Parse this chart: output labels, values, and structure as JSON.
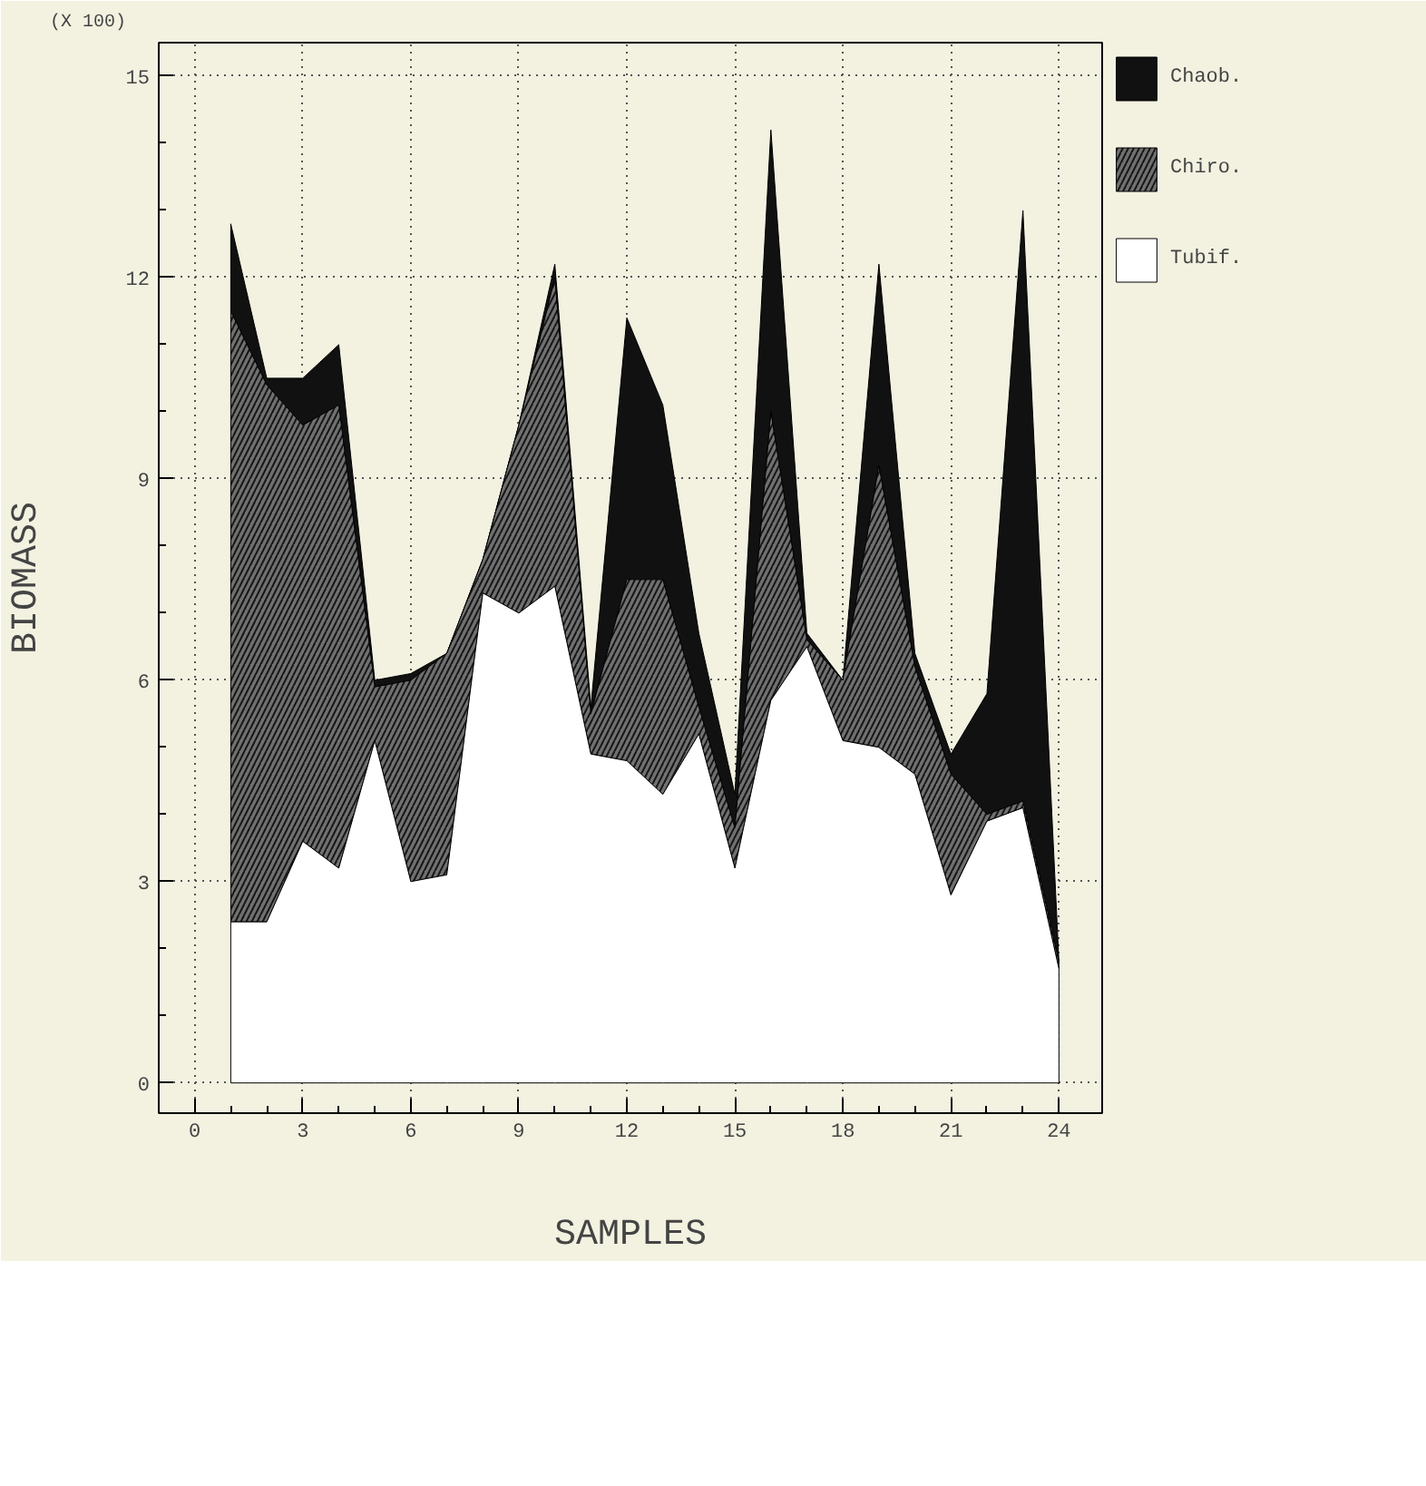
{
  "chart_data": {
    "type": "area",
    "stacked": true,
    "xlabel": "SAMPLES",
    "ylabel": "BIOMASS",
    "annotations": [
      "(X 100)"
    ],
    "x": [
      1,
      2,
      3,
      4,
      5,
      6,
      7,
      8,
      9,
      10,
      11,
      12,
      13,
      14,
      15,
      16,
      17,
      18,
      19,
      20,
      21,
      22,
      23,
      24
    ],
    "series": [
      {
        "name": "Tubif.",
        "color": "#ffffff",
        "values": [
          2.4,
          2.4,
          3.6,
          3.2,
          5.1,
          3.0,
          3.1,
          7.3,
          7.0,
          7.4,
          4.9,
          4.8,
          4.3,
          5.2,
          3.2,
          5.7,
          6.5,
          5.1,
          5.0,
          4.6,
          2.8,
          3.9,
          4.1,
          1.7
        ]
      },
      {
        "name": "Chiro.",
        "color": "#707070",
        "values": [
          9.1,
          8.0,
          6.2,
          6.9,
          0.8,
          3.0,
          3.3,
          0.5,
          2.8,
          4.6,
          0.6,
          2.7,
          3.2,
          0.4,
          0.6,
          4.3,
          0.1,
          0.9,
          4.2,
          1.6,
          1.8,
          0.1,
          0.1,
          0.1
        ]
      },
      {
        "name": "Chaob.",
        "color": "#111111",
        "values": [
          1.3,
          0.1,
          0.7,
          0.9,
          0.1,
          0.1,
          0.0,
          0.0,
          0.0,
          0.2,
          0.1,
          3.9,
          2.6,
          1.1,
          0.5,
          4.2,
          0.1,
          0.0,
          3.0,
          0.2,
          0.3,
          1.8,
          8.8,
          0.0
        ]
      }
    ],
    "xlim": [
      -1,
      25.2
    ],
    "ylim": [
      -0.45,
      15.5
    ],
    "xticks": [
      0,
      3,
      6,
      9,
      12,
      15,
      18,
      21,
      24
    ],
    "yticks": [
      0,
      3,
      6,
      9,
      12,
      15
    ],
    "grid": true,
    "legend": "right"
  }
}
